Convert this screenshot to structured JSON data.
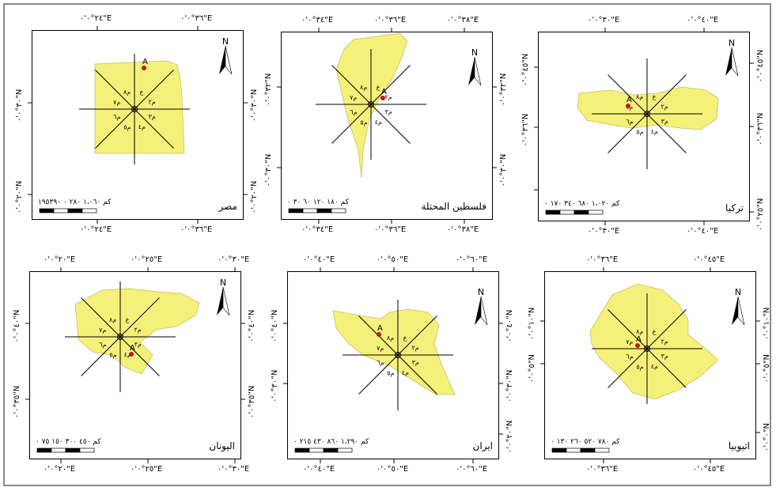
{
  "maps": [
    {
      "name": "مصر",
      "top_ticks": [
        "٢٤°٠'٠\"E",
        "٣٦°٠'٠\"E"
      ],
      "bottom_ticks": [
        "٢٤°٠'٠\"E",
        "٣٦°٠'٠\"E"
      ],
      "left_ticks": [
        "٣٠°٠'٠\"N",
        "٢٠°٠'٠\"N"
      ],
      "right_ticks": [
        "٣٠°٠'٠\"N",
        "٢٠°٠'٠\"N"
      ],
      "scale_text": "كم ١،٠٦٠ ٢٨٠ ٠ ١٩٥٣٩٠",
      "north_label": "N",
      "point_label": "A",
      "zone_labels": [
        "ع",
        "م٢",
        "م٣",
        "م٤",
        "م٥",
        "م٦",
        "م٧",
        "م٨"
      ]
    },
    {
      "name": "فلسطين المحتلة",
      "top_ticks": [
        "٣٤°٠'٠\"E",
        "٣٦°٠'٠\"E",
        "٣٨°٠'٠\"E"
      ],
      "bottom_ticks": [
        "٣٤°٠'٠\"E",
        "٣٦°٠'٠\"E",
        "٣٨°٠'٠\"E"
      ],
      "left_ticks": [
        "٣٢°٠'٠\"N",
        "٣٠°٠'٠\"N"
      ],
      "right_ticks": [
        "٣٢°٠'٠\"N",
        "٣٠°٠'٠\"N"
      ],
      "scale_text": "كم ١٨٠ ١٢٠ ٦٠ ٣٠ ٠",
      "north_label": "N",
      "point_label": "A",
      "zone_labels": [
        "ع",
        "م٢",
        "م٣",
        "م٤",
        "م٥",
        "م٦",
        "م٧",
        "م٨"
      ]
    },
    {
      "name": "تركيا",
      "top_ticks": [
        "٣٠°٠'٠\"E",
        "٤٠°٠'٠\"E"
      ],
      "bottom_ticks": [
        "٣٠°٠'٠\"E",
        "٤٠°٠'٠\"E"
      ],
      "left_ticks": [
        "٤٥°٠'٠\"N",
        "٣٦°٠'٠\"N"
      ],
      "right_ticks": [
        "٤٥°٠'٠\"N",
        "٣٦°٠'٠\"N",
        "٢٥°٠'٠\"N"
      ],
      "scale_text": "كم ١،٠٢٠ ٦٨٠ ٣٤٠ ١٧٠ ٠",
      "north_label": "N",
      "point_label": "A",
      "zone_labels": [
        "ع",
        "م٢",
        "م٣",
        "م٤",
        "م٥",
        "م٦",
        "م٧",
        "م٨"
      ]
    },
    {
      "name": "اليونان",
      "top_ticks": [
        "٢٠°٠'٠\"E",
        "٢٥°٠'٠\"E",
        "٣٠°٠'٠\"E"
      ],
      "bottom_ticks": [
        "٢٠°٠'٠\"E",
        "٢٥°٠'٠\"E",
        "٣٠°٠'٠\"E"
      ],
      "left_ticks": [
        "٤٠°٠'٠\"N",
        "٣٥°٠'٠\"N"
      ],
      "right_ticks": [
        "٤٠°٠'٠\"N",
        "٣٥°٠'٠\"N"
      ],
      "scale_text": "كم ٤٥٠ ٣٠٠ ١٥٠ ٧٥ ٠",
      "north_label": "N",
      "point_label": "A",
      "zone_labels": [
        "ع",
        "م٢",
        "م٣",
        "م٤",
        "م٥",
        "م٦",
        "م٧",
        "م٨"
      ]
    },
    {
      "name": "ايران",
      "top_ticks": [
        "٤٠°٠'٠\"E",
        "٥٠°٠'٠\"E",
        "٦٠°٠'٠\"E"
      ],
      "bottom_ticks": [
        "٤٠°٠'٠\"E",
        "٥٠°٠'٠\"E",
        "٦٠°٠'٠\"E"
      ],
      "left_ticks": [
        "٤٠°٠'٠\"N",
        "٣٠°٠'٠\"N"
      ],
      "right_ticks": [
        "٤٠°٠'٠\"N",
        "٣٠°٠'٠\"N",
        "٢٠°٠'٠\"N"
      ],
      "scale_text": "كم ١،٢٩٠ ٨٦٠ ٤٣٠ ٢١٥ ٠",
      "north_label": "N",
      "point_label": "A",
      "zone_labels": [
        "ع",
        "م٢",
        "م٣",
        "م٤",
        "م٥",
        "م٦",
        "م٧",
        "م٨"
      ]
    },
    {
      "name": "اثيوبيا",
      "top_ticks": [
        "٣٦°٠'٠\"E",
        "٤٥°٠'٠\"E"
      ],
      "bottom_ticks": [
        "٣٦°٠'٠\"E",
        "٤٥°٠'٠\"E"
      ],
      "left_ticks": [
        "١٠°٠'٠\"N",
        "٥°٠'٠\"N"
      ],
      "right_ticks": [
        "١٠°٠'٠\"N",
        "٥°٠'٠\"N",
        "٠°٠'٠\"N"
      ],
      "scale_text": "كم ٧٨٠ ٥٢٠ ٢٦٠ ١٣٠ ٠",
      "north_label": "N",
      "point_label": "A",
      "zone_labels": [
        "ع",
        "م٢",
        "م٣",
        "م٤",
        "م٥",
        "م٦",
        "م٧",
        "م٨"
      ]
    }
  ],
  "colors": {
    "land": "#f5f07a",
    "border": "#000000",
    "point": "#c01818",
    "frame": "#8a8a8a"
  }
}
